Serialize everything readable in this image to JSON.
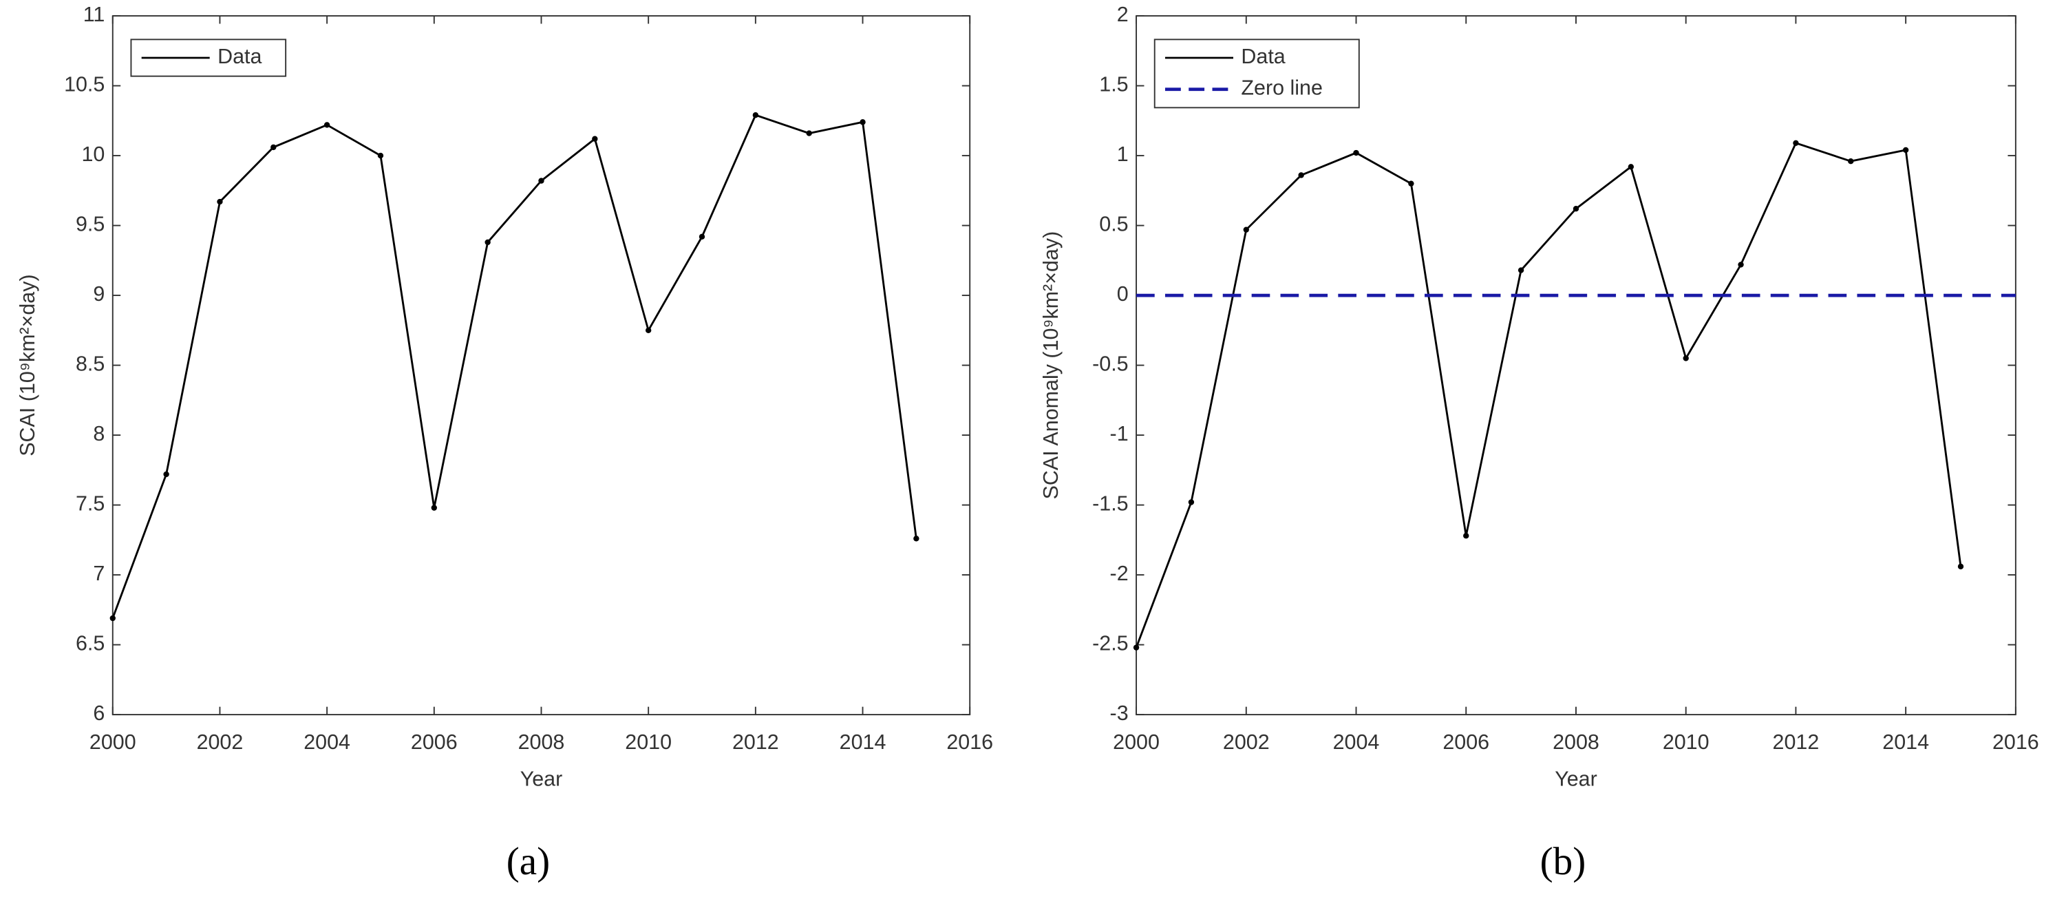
{
  "chart_data": [
    {
      "type": "line",
      "panel_label": "(a)",
      "xlabel": "Year",
      "ylabel": "SCAI (10⁹km²×day)",
      "xlim": [
        2000,
        2016
      ],
      "xticks": [
        2000,
        2002,
        2004,
        2006,
        2008,
        2010,
        2012,
        2014,
        2016
      ],
      "ylim": [
        6,
        11
      ],
      "yticks": [
        6,
        6.5,
        7,
        7.5,
        8,
        8.5,
        9,
        9.5,
        10,
        10.5,
        11
      ],
      "legend": "upper left",
      "x": [
        2000,
        2001,
        2002,
        2003,
        2004,
        2005,
        2006,
        2007,
        2008,
        2009,
        2010,
        2011,
        2012,
        2013,
        2014,
        2015
      ],
      "series": [
        {
          "name": "Data",
          "color": "#000000",
          "dash": false,
          "marker": true,
          "values": [
            6.69,
            7.72,
            9.67,
            10.06,
            10.22,
            10.0,
            7.48,
            9.38,
            9.82,
            10.12,
            8.75,
            9.42,
            10.29,
            10.16,
            10.24,
            7.26
          ]
        }
      ]
    },
    {
      "type": "line",
      "panel_label": "(b)",
      "xlabel": "Year",
      "ylabel": "SCAI Anomaly (10⁹km²×day)",
      "xlim": [
        2000,
        2016
      ],
      "xticks": [
        2000,
        2002,
        2004,
        2006,
        2008,
        2010,
        2012,
        2014,
        2016
      ],
      "ylim": [
        -3,
        2
      ],
      "yticks": [
        -3,
        -2.5,
        -2,
        -1.5,
        -1,
        -0.5,
        0,
        0.5,
        1,
        1.5,
        2
      ],
      "legend": "upper left",
      "x": [
        2000,
        2001,
        2002,
        2003,
        2004,
        2005,
        2006,
        2007,
        2008,
        2009,
        2010,
        2011,
        2012,
        2013,
        2014,
        2015
      ],
      "series": [
        {
          "name": "Data",
          "color": "#000000",
          "dash": false,
          "marker": true,
          "values": [
            -2.52,
            -1.48,
            0.47,
            0.86,
            1.02,
            0.8,
            -1.72,
            0.18,
            0.62,
            0.92,
            -0.45,
            0.22,
            1.09,
            0.96,
            1.04,
            -1.94
          ]
        },
        {
          "name": "Zero line",
          "color": "#1a1aa6",
          "dash": true,
          "marker": false,
          "x": [
            2000,
            2016
          ],
          "values": [
            0,
            0
          ]
        }
      ]
    }
  ]
}
